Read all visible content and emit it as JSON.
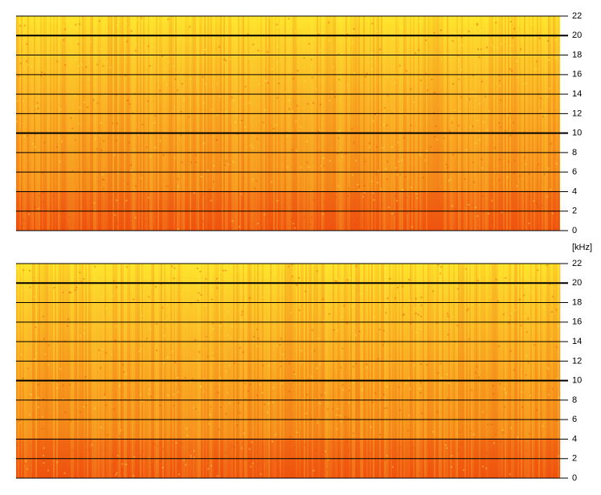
{
  "chart_data": [
    {
      "type": "spectrogram",
      "ylim": [
        0,
        22
      ],
      "yticks": [
        0,
        2,
        4,
        6,
        8,
        10,
        12,
        14,
        16,
        18,
        20,
        22
      ]
    },
    {
      "type": "spectrogram",
      "ylabel": "[kHz]",
      "ylim": [
        0,
        22
      ],
      "yticks": [
        0,
        2,
        4,
        6,
        8,
        10,
        12,
        14,
        16,
        18,
        20,
        22
      ]
    }
  ]
}
